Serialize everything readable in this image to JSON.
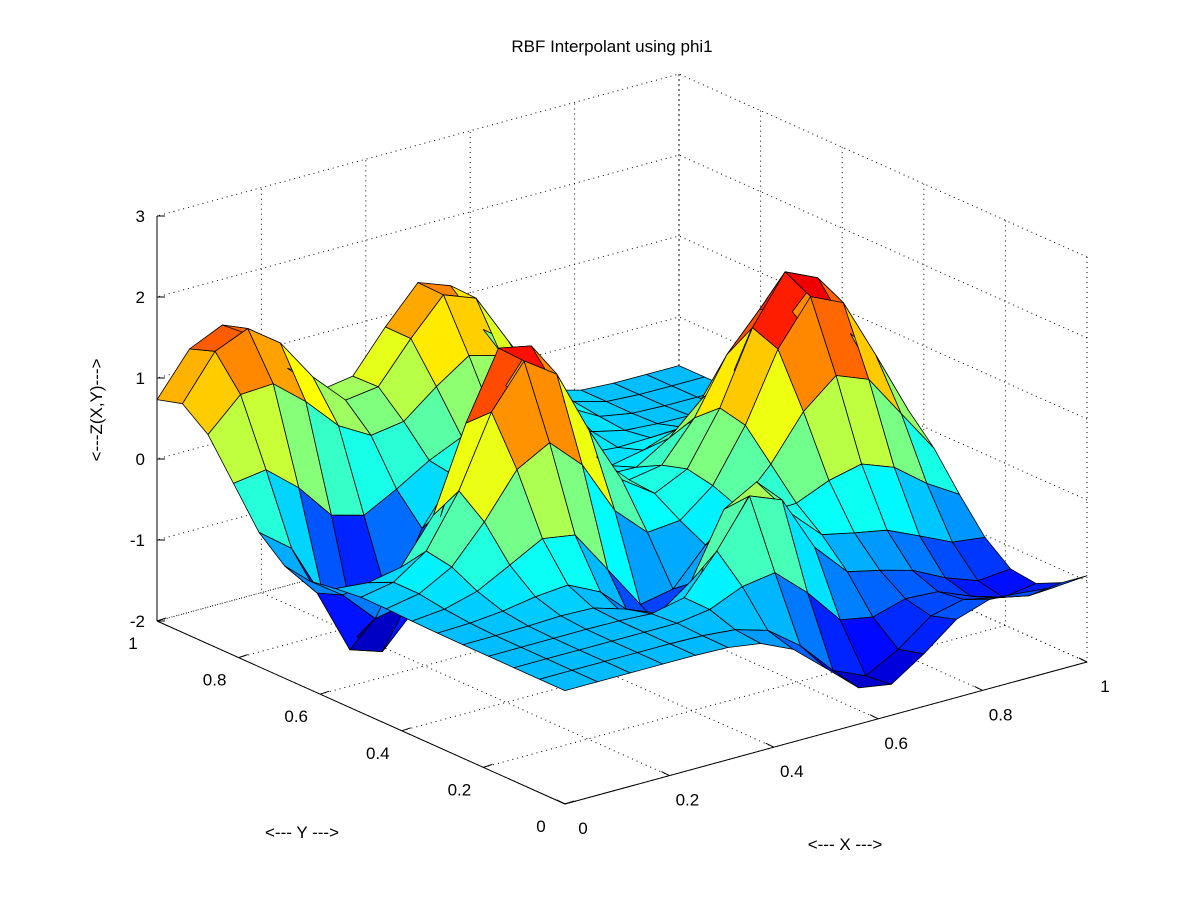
{
  "chart_data": {
    "type": "surface",
    "title": "RBF Interpolant using phi1",
    "xlabel": "<--- X --->",
    "ylabel": "<--- Y --->",
    "zlabel": "<---Z(X,Y)--->",
    "xlim": [
      0,
      1
    ],
    "ylim": [
      0,
      1
    ],
    "zlim": [
      -2,
      3
    ],
    "x_ticks": [
      0,
      0.2,
      0.4,
      0.6,
      0.8,
      1
    ],
    "x_tick_labels": [
      "0",
      "0.2",
      "0.4",
      "0.6",
      "0.8",
      "1"
    ],
    "y_ticks": [
      0,
      0.2,
      0.4,
      0.6,
      0.8,
      1
    ],
    "y_tick_labels": [
      "0",
      "0.2",
      "0.4",
      "0.6",
      "0.8",
      "1"
    ],
    "z_ticks": [
      -2,
      -1,
      0,
      1,
      2,
      3
    ],
    "z_tick_labels": [
      "-2",
      "-1",
      "0",
      "1",
      "2",
      "3"
    ],
    "grid": true,
    "colormap": "jet",
    "x": [
      0,
      0.0625,
      0.125,
      0.1875,
      0.25,
      0.3125,
      0.375,
      0.4375,
      0.5,
      0.5625,
      0.625,
      0.6875,
      0.75,
      0.8125,
      0.875,
      0.9375,
      1
    ],
    "y": [
      0,
      0.0625,
      0.125,
      0.1875,
      0.25,
      0.3125,
      0.375,
      0.4375,
      0.5,
      0.5625,
      0.625,
      0.6875,
      0.75,
      0.8125,
      0.875,
      0.9375,
      1
    ],
    "z_description": "z values sampled on the x-y grid (rows index y ascending, columns index x ascending)"
  }
}
